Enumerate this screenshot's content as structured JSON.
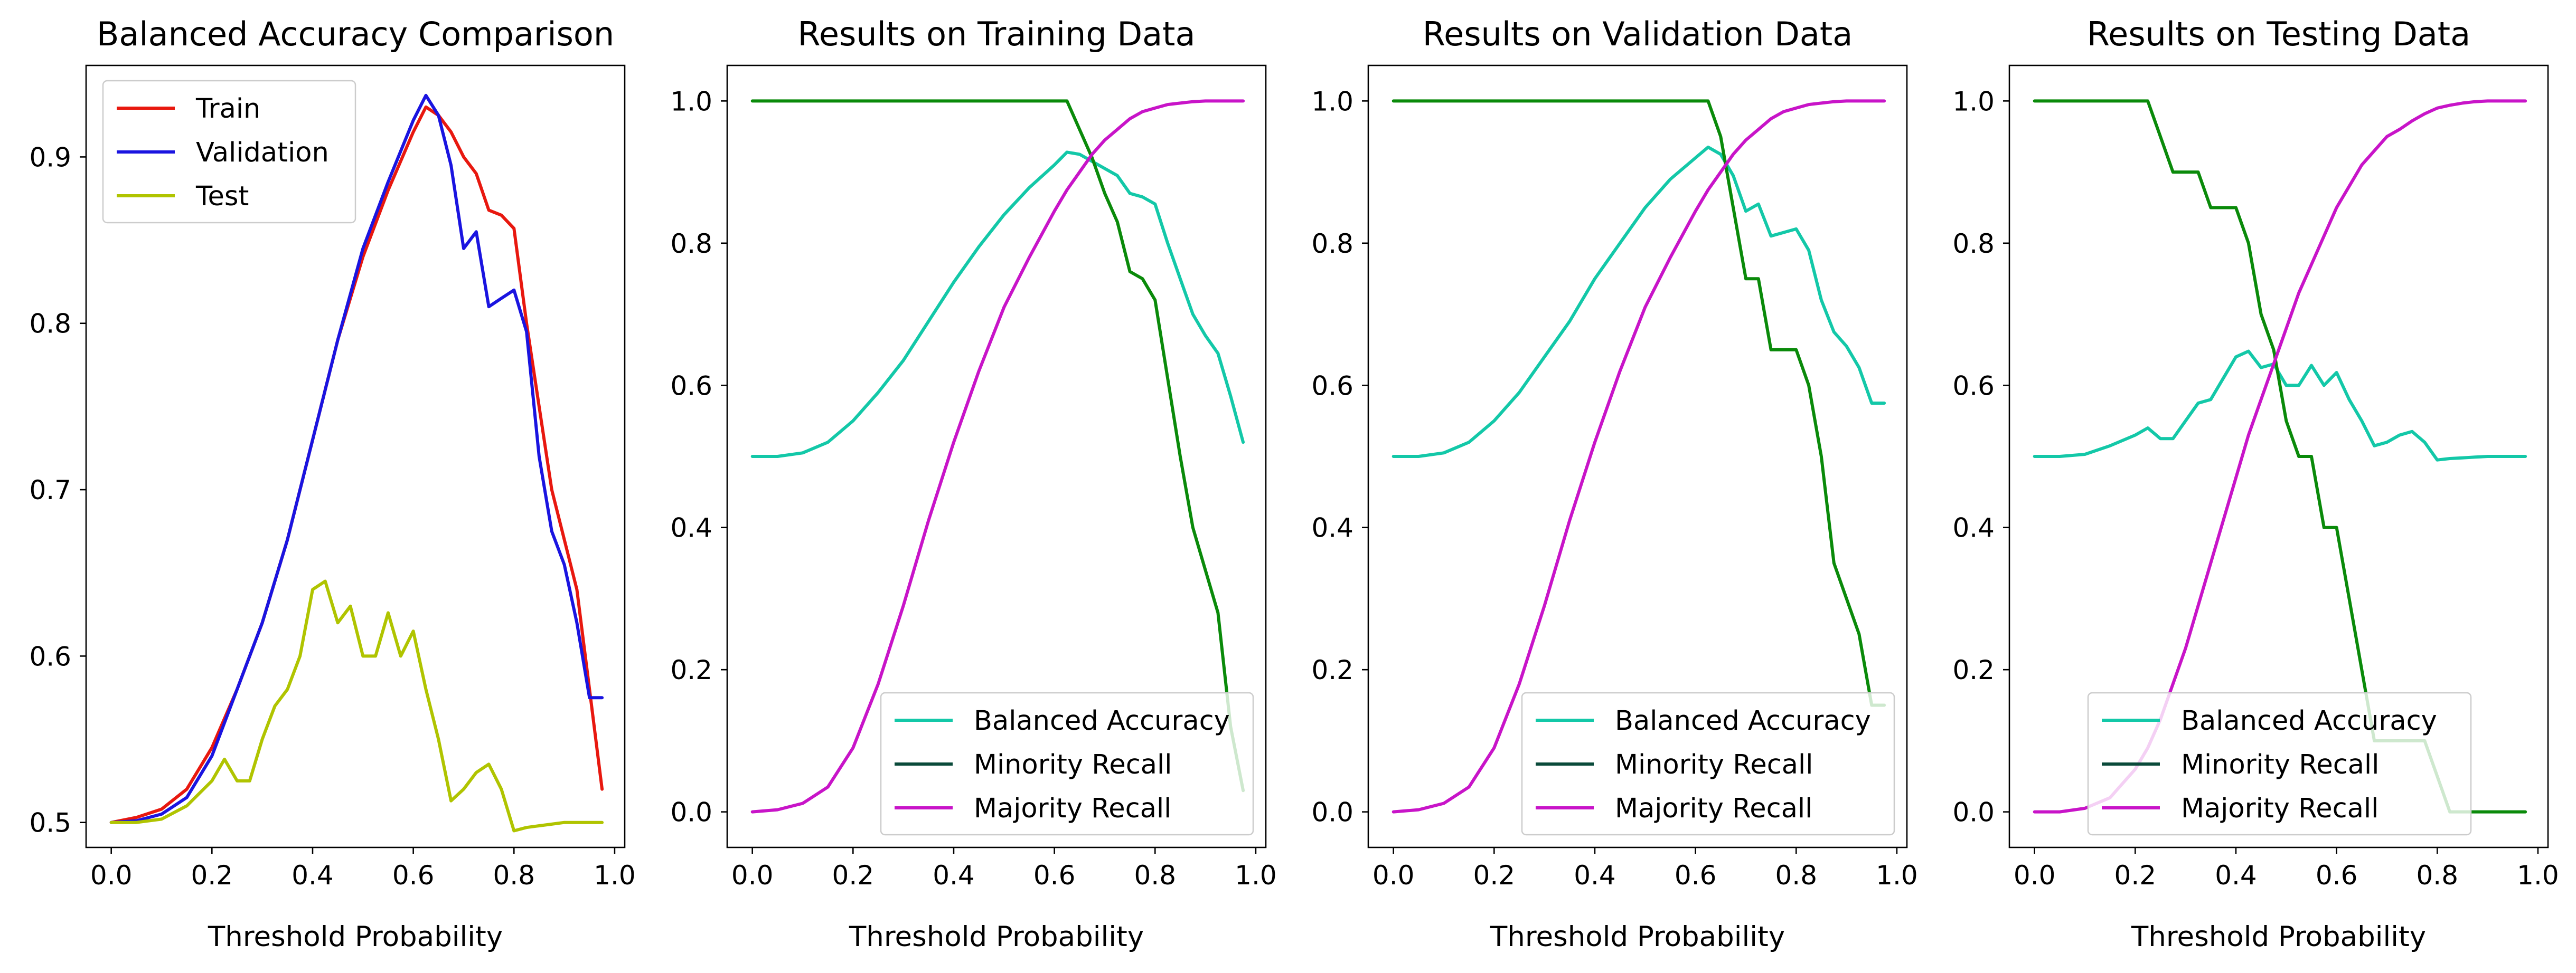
{
  "colors": {
    "train": "#e8180f",
    "validation": "#1a14e0",
    "test": "#b0c400",
    "balanced_accuracy": "#13c8a8",
    "minority_recall": "#0a8a0a",
    "minority_recall_legend": "#0a4a3a",
    "majority_recall": "#c814c8"
  },
  "chart_data": [
    {
      "type": "line",
      "title": "Balanced Accuracy Comparison",
      "xlabel": "Threshold Probability",
      "ylabel": "",
      "xlim": [
        -0.05,
        1.02
      ],
      "ylim": [
        0.485,
        0.955
      ],
      "xticks": [
        "0.0",
        "0.2",
        "0.4",
        "0.6",
        "0.8",
        "1.0"
      ],
      "yticks": [
        "0.5",
        "0.6",
        "0.7",
        "0.8",
        "0.9"
      ],
      "legend_position": "upper-left",
      "series": [
        {
          "name": "Train",
          "color": "train",
          "x": [
            0.0,
            0.05,
            0.1,
            0.15,
            0.2,
            0.25,
            0.3,
            0.35,
            0.4,
            0.45,
            0.5,
            0.55,
            0.6,
            0.625,
            0.65,
            0.675,
            0.7,
            0.725,
            0.75,
            0.775,
            0.8,
            0.825,
            0.85,
            0.875,
            0.9,
            0.925,
            0.95,
            0.975
          ],
          "y": [
            0.5,
            0.503,
            0.508,
            0.52,
            0.545,
            0.58,
            0.62,
            0.67,
            0.73,
            0.79,
            0.84,
            0.88,
            0.915,
            0.93,
            0.925,
            0.915,
            0.9,
            0.89,
            0.868,
            0.865,
            0.857,
            0.8,
            0.75,
            0.7,
            0.67,
            0.64,
            0.58,
            0.52
          ]
        },
        {
          "name": "Validation",
          "color": "validation",
          "x": [
            0.0,
            0.05,
            0.1,
            0.15,
            0.2,
            0.25,
            0.3,
            0.35,
            0.4,
            0.45,
            0.5,
            0.55,
            0.6,
            0.625,
            0.65,
            0.675,
            0.7,
            0.725,
            0.75,
            0.775,
            0.8,
            0.825,
            0.85,
            0.875,
            0.9,
            0.925,
            0.95,
            0.975
          ],
          "y": [
            0.5,
            0.501,
            0.505,
            0.515,
            0.54,
            0.58,
            0.62,
            0.67,
            0.73,
            0.79,
            0.845,
            0.885,
            0.922,
            0.937,
            0.925,
            0.895,
            0.845,
            0.855,
            0.81,
            0.815,
            0.82,
            0.795,
            0.72,
            0.675,
            0.655,
            0.62,
            0.575,
            0.575
          ]
        },
        {
          "name": "Test",
          "color": "test",
          "x": [
            0.0,
            0.05,
            0.1,
            0.15,
            0.2,
            0.225,
            0.25,
            0.275,
            0.3,
            0.325,
            0.35,
            0.375,
            0.4,
            0.425,
            0.45,
            0.475,
            0.5,
            0.525,
            0.55,
            0.575,
            0.6,
            0.625,
            0.65,
            0.675,
            0.7,
            0.725,
            0.75,
            0.775,
            0.8,
            0.825,
            0.85,
            0.875,
            0.9,
            0.925,
            0.95,
            0.975
          ],
          "y": [
            0.5,
            0.5,
            0.502,
            0.51,
            0.525,
            0.538,
            0.525,
            0.525,
            0.55,
            0.57,
            0.58,
            0.6,
            0.64,
            0.645,
            0.62,
            0.63,
            0.6,
            0.6,
            0.626,
            0.6,
            0.615,
            0.58,
            0.55,
            0.513,
            0.52,
            0.53,
            0.535,
            0.52,
            0.495,
            0.497,
            0.498,
            0.499,
            0.5,
            0.5,
            0.5,
            0.5
          ]
        }
      ]
    },
    {
      "type": "line",
      "title": "Results on Training Data",
      "xlabel": "Threshold Probability",
      "ylabel": "",
      "xlim": [
        -0.05,
        1.02
      ],
      "ylim": [
        -0.05,
        1.05
      ],
      "xticks": [
        "0.0",
        "0.2",
        "0.4",
        "0.6",
        "0.8",
        "1.0"
      ],
      "yticks": [
        "0.0",
        "0.2",
        "0.4",
        "0.6",
        "0.8",
        "1.0"
      ],
      "legend_position": "lower-right",
      "series": [
        {
          "name": "Balanced Accuracy",
          "color": "balanced_accuracy",
          "x": [
            0.0,
            0.05,
            0.1,
            0.15,
            0.2,
            0.25,
            0.3,
            0.35,
            0.4,
            0.45,
            0.5,
            0.55,
            0.6,
            0.625,
            0.65,
            0.675,
            0.7,
            0.725,
            0.75,
            0.775,
            0.8,
            0.825,
            0.85,
            0.875,
            0.9,
            0.925,
            0.95,
            0.975
          ],
          "y": [
            0.5,
            0.5,
            0.505,
            0.52,
            0.55,
            0.59,
            0.635,
            0.69,
            0.745,
            0.795,
            0.84,
            0.878,
            0.91,
            0.928,
            0.925,
            0.915,
            0.905,
            0.895,
            0.87,
            0.865,
            0.855,
            0.8,
            0.75,
            0.7,
            0.67,
            0.645,
            0.585,
            0.52
          ]
        },
        {
          "name": "Minority Recall",
          "color": "minority_recall",
          "legend_color": "minority_recall_legend",
          "x": [
            0.0,
            0.05,
            0.1,
            0.15,
            0.2,
            0.25,
            0.3,
            0.35,
            0.4,
            0.45,
            0.5,
            0.55,
            0.6,
            0.625,
            0.65,
            0.675,
            0.7,
            0.725,
            0.75,
            0.775,
            0.8,
            0.825,
            0.85,
            0.875,
            0.9,
            0.925,
            0.95,
            0.975
          ],
          "y": [
            1.0,
            1.0,
            1.0,
            1.0,
            1.0,
            1.0,
            1.0,
            1.0,
            1.0,
            1.0,
            1.0,
            1.0,
            1.0,
            1.0,
            0.96,
            0.92,
            0.87,
            0.83,
            0.76,
            0.75,
            0.72,
            0.61,
            0.5,
            0.4,
            0.34,
            0.28,
            0.12,
            0.03
          ]
        },
        {
          "name": "Majority Recall",
          "color": "majority_recall",
          "x": [
            0.0,
            0.05,
            0.1,
            0.15,
            0.2,
            0.25,
            0.3,
            0.35,
            0.4,
            0.45,
            0.5,
            0.55,
            0.6,
            0.625,
            0.65,
            0.675,
            0.7,
            0.725,
            0.75,
            0.775,
            0.8,
            0.825,
            0.85,
            0.875,
            0.9,
            0.925,
            0.95,
            0.975
          ],
          "y": [
            0.0,
            0.003,
            0.012,
            0.035,
            0.09,
            0.18,
            0.29,
            0.41,
            0.52,
            0.62,
            0.71,
            0.78,
            0.845,
            0.875,
            0.9,
            0.925,
            0.945,
            0.96,
            0.975,
            0.985,
            0.99,
            0.995,
            0.997,
            0.999,
            1.0,
            1.0,
            1.0,
            1.0
          ]
        }
      ]
    },
    {
      "type": "line",
      "title": "Results on Validation Data",
      "xlabel": "Threshold Probability",
      "ylabel": "",
      "xlim": [
        -0.05,
        1.02
      ],
      "ylim": [
        -0.05,
        1.05
      ],
      "xticks": [
        "0.0",
        "0.2",
        "0.4",
        "0.6",
        "0.8",
        "1.0"
      ],
      "yticks": [
        "0.0",
        "0.2",
        "0.4",
        "0.6",
        "0.8",
        "1.0"
      ],
      "legend_position": "lower-right",
      "series": [
        {
          "name": "Balanced Accuracy",
          "color": "balanced_accuracy",
          "x": [
            0.0,
            0.05,
            0.1,
            0.15,
            0.2,
            0.25,
            0.3,
            0.35,
            0.4,
            0.45,
            0.5,
            0.55,
            0.6,
            0.625,
            0.65,
            0.675,
            0.7,
            0.725,
            0.75,
            0.775,
            0.8,
            0.825,
            0.85,
            0.875,
            0.9,
            0.925,
            0.95,
            0.975
          ],
          "y": [
            0.5,
            0.5,
            0.505,
            0.52,
            0.55,
            0.59,
            0.64,
            0.69,
            0.75,
            0.8,
            0.85,
            0.89,
            0.92,
            0.935,
            0.925,
            0.895,
            0.845,
            0.855,
            0.81,
            0.815,
            0.82,
            0.79,
            0.72,
            0.675,
            0.655,
            0.625,
            0.575,
            0.575
          ]
        },
        {
          "name": "Minority Recall",
          "color": "minority_recall",
          "legend_color": "minority_recall_legend",
          "x": [
            0.0,
            0.05,
            0.1,
            0.15,
            0.2,
            0.25,
            0.3,
            0.35,
            0.4,
            0.45,
            0.5,
            0.55,
            0.6,
            0.625,
            0.65,
            0.675,
            0.7,
            0.725,
            0.75,
            0.775,
            0.8,
            0.825,
            0.85,
            0.875,
            0.9,
            0.925,
            0.95,
            0.975
          ],
          "y": [
            1.0,
            1.0,
            1.0,
            1.0,
            1.0,
            1.0,
            1.0,
            1.0,
            1.0,
            1.0,
            1.0,
            1.0,
            1.0,
            1.0,
            0.95,
            0.85,
            0.75,
            0.75,
            0.65,
            0.65,
            0.65,
            0.6,
            0.5,
            0.35,
            0.3,
            0.25,
            0.15,
            0.15
          ]
        },
        {
          "name": "Majority Recall",
          "color": "majority_recall",
          "x": [
            0.0,
            0.05,
            0.1,
            0.15,
            0.2,
            0.25,
            0.3,
            0.35,
            0.4,
            0.45,
            0.5,
            0.55,
            0.6,
            0.625,
            0.65,
            0.675,
            0.7,
            0.725,
            0.75,
            0.775,
            0.8,
            0.825,
            0.85,
            0.875,
            0.9,
            0.925,
            0.95,
            0.975
          ],
          "y": [
            0.0,
            0.003,
            0.012,
            0.035,
            0.09,
            0.18,
            0.29,
            0.41,
            0.52,
            0.62,
            0.71,
            0.78,
            0.845,
            0.875,
            0.9,
            0.925,
            0.945,
            0.96,
            0.975,
            0.985,
            0.99,
            0.995,
            0.997,
            0.999,
            1.0,
            1.0,
            1.0,
            1.0
          ]
        }
      ]
    },
    {
      "type": "line",
      "title": "Results on Testing Data",
      "xlabel": "Threshold Probability",
      "ylabel": "",
      "xlim": [
        -0.05,
        1.02
      ],
      "ylim": [
        -0.05,
        1.05
      ],
      "xticks": [
        "0.0",
        "0.2",
        "0.4",
        "0.6",
        "0.8",
        "1.0"
      ],
      "yticks": [
        "0.0",
        "0.2",
        "0.4",
        "0.6",
        "0.8",
        "1.0"
      ],
      "legend_position": "lower-center",
      "series": [
        {
          "name": "Balanced Accuracy",
          "color": "balanced_accuracy",
          "x": [
            0.0,
            0.05,
            0.1,
            0.15,
            0.2,
            0.225,
            0.25,
            0.275,
            0.3,
            0.325,
            0.35,
            0.375,
            0.4,
            0.425,
            0.45,
            0.475,
            0.5,
            0.525,
            0.55,
            0.575,
            0.6,
            0.625,
            0.65,
            0.675,
            0.7,
            0.725,
            0.75,
            0.775,
            0.8,
            0.825,
            0.85,
            0.875,
            0.9,
            0.925,
            0.95,
            0.975
          ],
          "y": [
            0.5,
            0.5,
            0.503,
            0.515,
            0.53,
            0.54,
            0.525,
            0.525,
            0.55,
            0.575,
            0.58,
            0.61,
            0.64,
            0.648,
            0.625,
            0.63,
            0.6,
            0.6,
            0.628,
            0.6,
            0.618,
            0.58,
            0.55,
            0.515,
            0.52,
            0.53,
            0.535,
            0.52,
            0.495,
            0.497,
            0.498,
            0.499,
            0.5,
            0.5,
            0.5,
            0.5
          ]
        },
        {
          "name": "Minority Recall",
          "color": "minority_recall",
          "legend_color": "minority_recall_legend",
          "x": [
            0.0,
            0.05,
            0.1,
            0.15,
            0.2,
            0.225,
            0.25,
            0.275,
            0.3,
            0.325,
            0.35,
            0.375,
            0.4,
            0.425,
            0.45,
            0.475,
            0.5,
            0.525,
            0.55,
            0.575,
            0.6,
            0.625,
            0.65,
            0.675,
            0.7,
            0.725,
            0.75,
            0.775,
            0.8,
            0.825,
            0.85,
            0.875,
            0.9,
            0.925,
            0.95,
            0.975
          ],
          "y": [
            1.0,
            1.0,
            1.0,
            1.0,
            1.0,
            1.0,
            0.95,
            0.9,
            0.9,
            0.9,
            0.85,
            0.85,
            0.85,
            0.8,
            0.7,
            0.65,
            0.55,
            0.5,
            0.5,
            0.4,
            0.4,
            0.3,
            0.2,
            0.1,
            0.1,
            0.1,
            0.1,
            0.1,
            0.05,
            0.0,
            0.0,
            0.0,
            0.0,
            0.0,
            0.0,
            0.0
          ]
        },
        {
          "name": "Majority Recall",
          "color": "majority_recall",
          "x": [
            0.0,
            0.05,
            0.1,
            0.15,
            0.2,
            0.225,
            0.25,
            0.275,
            0.3,
            0.325,
            0.35,
            0.375,
            0.4,
            0.425,
            0.45,
            0.475,
            0.5,
            0.525,
            0.55,
            0.575,
            0.6,
            0.625,
            0.65,
            0.675,
            0.7,
            0.725,
            0.75,
            0.775,
            0.8,
            0.825,
            0.85,
            0.875,
            0.9,
            0.925,
            0.95,
            0.975
          ],
          "y": [
            0.0,
            0.0,
            0.005,
            0.02,
            0.06,
            0.09,
            0.13,
            0.18,
            0.23,
            0.29,
            0.35,
            0.41,
            0.47,
            0.53,
            0.58,
            0.63,
            0.68,
            0.73,
            0.77,
            0.81,
            0.85,
            0.88,
            0.91,
            0.93,
            0.95,
            0.96,
            0.972,
            0.982,
            0.99,
            0.994,
            0.997,
            0.999,
            1.0,
            1.0,
            1.0,
            1.0
          ]
        }
      ]
    }
  ]
}
